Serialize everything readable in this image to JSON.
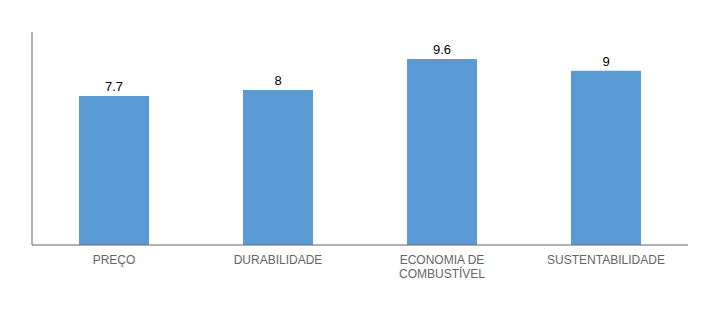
{
  "chart_data": {
    "type": "bar",
    "categories": [
      "PREÇO",
      "DURABILIDADE",
      "ECONOMIA DE\nCOMBUSTÍVEL",
      "SUSTENTABILIDADE"
    ],
    "values": [
      7.7,
      8,
      9.6,
      9
    ],
    "color": "#5B9BD5",
    "ylim": [
      0,
      11
    ],
    "data_labels": true,
    "tick_labels": "x",
    "grid": false
  }
}
